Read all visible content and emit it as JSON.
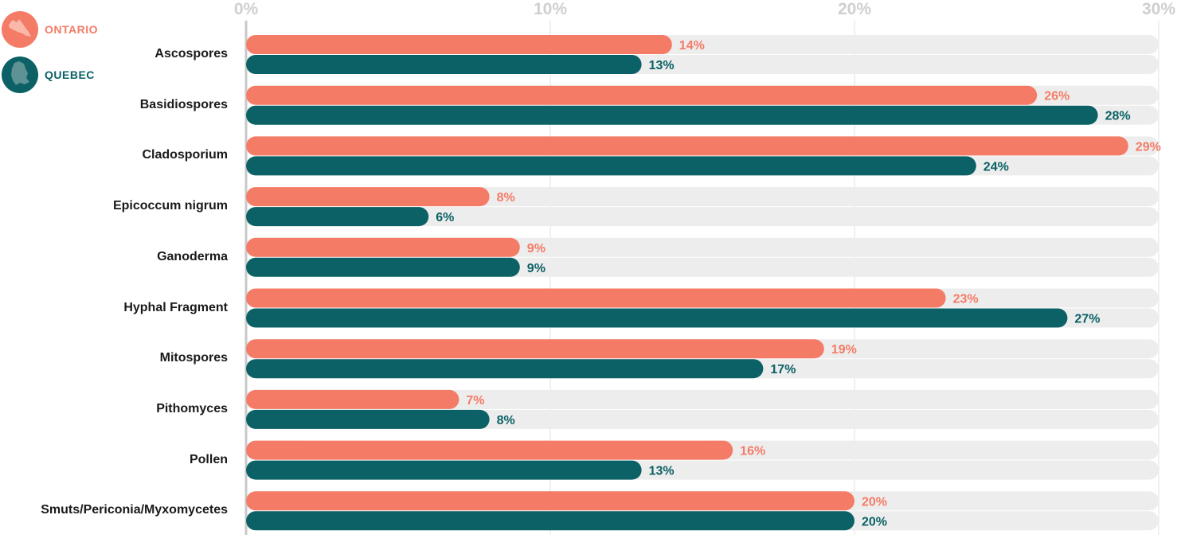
{
  "legend": {
    "ontario": {
      "label": "ONTARIO",
      "color": "#F47B66"
    },
    "quebec": {
      "label": "QUEBEC",
      "color": "#0B6165"
    }
  },
  "chart_data": {
    "type": "bar",
    "orientation": "horizontal",
    "x_ticks": [
      "0%",
      "10%",
      "20%",
      "30%"
    ],
    "xlim": [
      0,
      30
    ],
    "grid": true,
    "legend_position": "top-left",
    "categories": [
      "Ascospores",
      "Basidiospores",
      "Cladosporium",
      "Epicoccum nigrum",
      "Ganoderma",
      "Hyphal Fragment",
      "Mitospores",
      "Pithomyces",
      "Pollen",
      "Smuts/Periconia/Myxomycetes"
    ],
    "series": [
      {
        "name": "ONTARIO",
        "color": "#F47B66",
        "values": [
          14,
          26,
          29,
          8,
          9,
          23,
          19,
          7,
          16,
          20
        ]
      },
      {
        "name": "QUEBEC",
        "color": "#0B6165",
        "values": [
          13,
          28,
          24,
          6,
          9,
          27,
          17,
          8,
          13,
          20
        ]
      }
    ],
    "value_suffix": "%"
  }
}
